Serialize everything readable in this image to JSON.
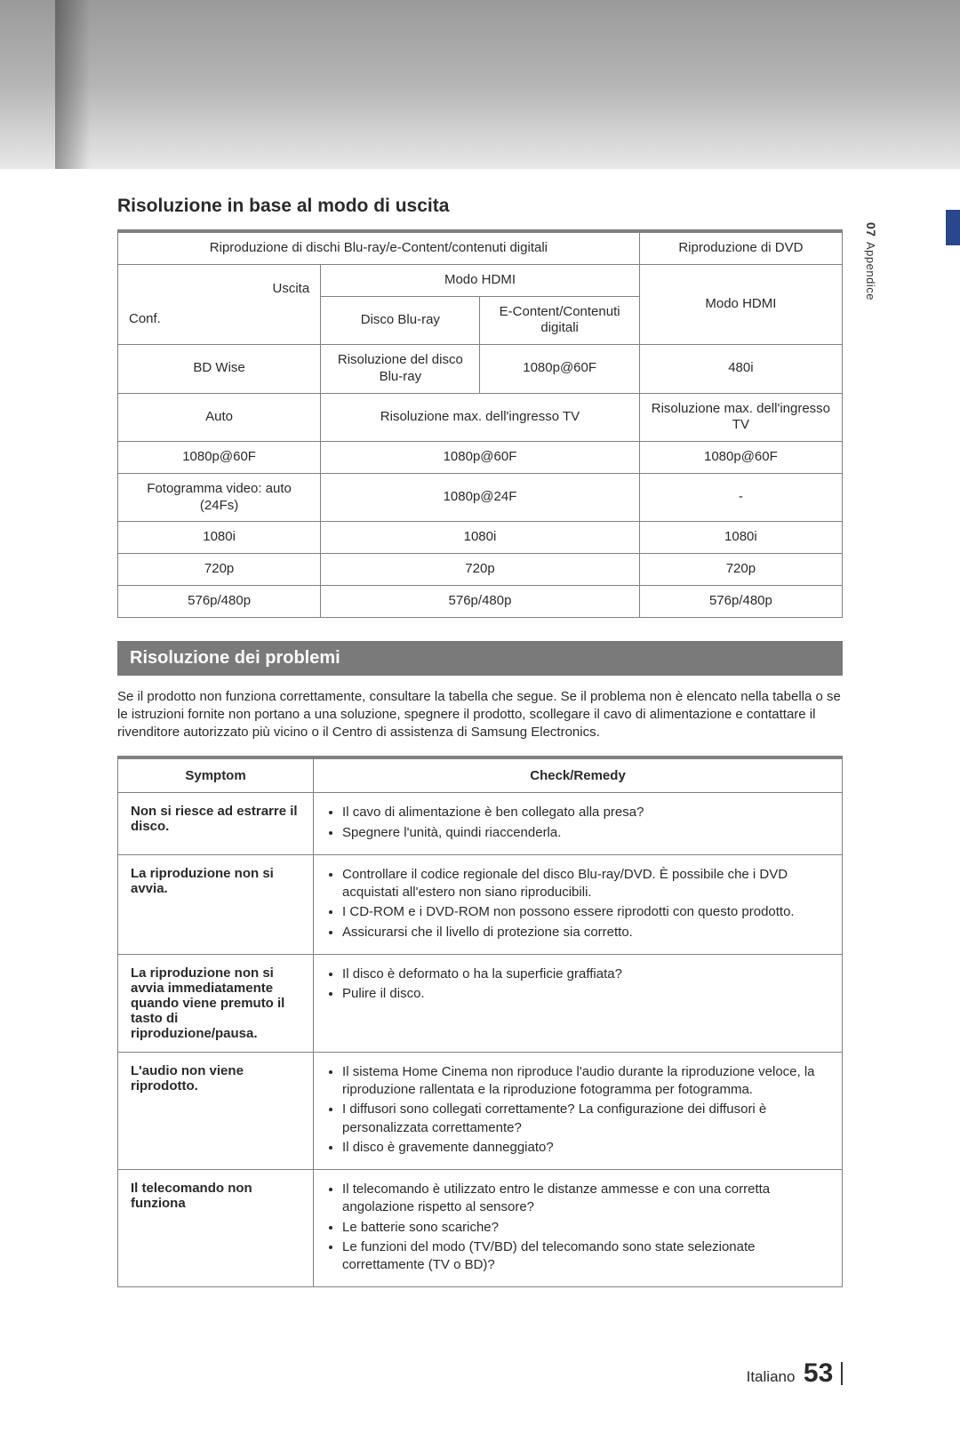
{
  "colors": {
    "banner_bg": "#7a7a7a",
    "banner_fg": "#ffffff",
    "border": "#808080",
    "text": "#2a2a2a",
    "accent": "#29478f"
  },
  "side": {
    "chapter_num": "07",
    "chapter_label": "Appendice"
  },
  "section1": {
    "title": "Risoluzione in base al modo di uscita"
  },
  "res_table": {
    "head_bluray": "Riproduzione di dischi Blu-ray/e-Content/contenuti digitali",
    "head_dvd": "Riproduzione di DVD",
    "uscita": "Uscita",
    "conf": "Conf.",
    "modo_hdmi_br": "Modo HDMI",
    "modo_hdmi_dvd": "Modo HDMI",
    "disco_bluray": "Disco Blu-ray",
    "econtent": "E-Content/Contenuti digitali",
    "rows": [
      {
        "conf": "BD Wise",
        "br": "Risoluzione del disco Blu-ray",
        "ec": "1080p@60F",
        "dvd": "480i"
      },
      {
        "conf": "Auto",
        "brspan": "Risoluzione max. dell'ingresso TV",
        "dvd": "Risoluzione max. dell'ingresso TV"
      },
      {
        "conf": "1080p@60F",
        "brspan": "1080p@60F",
        "dvd": "1080p@60F"
      },
      {
        "conf": "Fotogramma video: auto (24Fs)",
        "brspan": "1080p@24F",
        "dvd": "-"
      },
      {
        "conf": "1080i",
        "brspan": "1080i",
        "dvd": "1080i"
      },
      {
        "conf": "720p",
        "brspan": "720p",
        "dvd": "720p"
      },
      {
        "conf": "576p/480p",
        "brspan": "576p/480p",
        "dvd": "576p/480p"
      }
    ]
  },
  "section2": {
    "banner": "Risoluzione dei problemi",
    "intro": "Se il prodotto non funziona correttamente, consultare la tabella che segue. Se il problema non è elencato nella tabella o se le istruzioni fornite non portano a una soluzione, spegnere il prodotto, scollegare il cavo di alimentazione e contattare il rivenditore autorizzato più vicino o il Centro di assistenza di Samsung Electronics."
  },
  "ts_table": {
    "col_symptom": "Symptom",
    "col_remedy": "Check/Remedy",
    "rows": [
      {
        "symptom": "Non si riesce ad estrarre il disco.",
        "remedy": [
          "Il cavo di alimentazione è ben collegato alla presa?",
          "Spegnere l'unità, quindi riaccenderla."
        ]
      },
      {
        "symptom": "La riproduzione non si avvia.",
        "remedy": [
          "Controllare il codice regionale del disco Blu-ray/DVD. È possibile che i DVD acquistati all'estero non siano riproducibili.",
          "I CD-ROM e i DVD-ROM non possono essere riprodotti con questo prodotto.",
          "Assicurarsi che il livello di protezione sia corretto."
        ]
      },
      {
        "symptom": "La riproduzione non si avvia immediatamente quando viene premuto il tasto di riproduzione/pausa.",
        "remedy": [
          "Il disco è deformato o ha la superficie graffiata?",
          "Pulire il disco."
        ]
      },
      {
        "symptom": "L'audio non viene riprodotto.",
        "remedy": [
          "Il sistema Home Cinema non riproduce l'audio durante la riproduzione veloce, la riproduzione rallentata e la riproduzione fotogramma per fotogramma.",
          "I diffusori sono collegati correttamente? La configurazione dei diffusori è personalizzata correttamente?",
          "Il disco è gravemente danneggiato?"
        ]
      },
      {
        "symptom": "Il telecomando non funziona",
        "remedy": [
          "Il telecomando è utilizzato entro le distanze ammesse e con una corretta angolazione rispetto al sensore?",
          "Le batterie sono scariche?",
          "Le funzioni del modo (TV/BD) del telecomando sono state selezionate correttamente (TV o BD)?"
        ]
      }
    ]
  },
  "footer": {
    "lang": "Italiano",
    "page": "53"
  }
}
